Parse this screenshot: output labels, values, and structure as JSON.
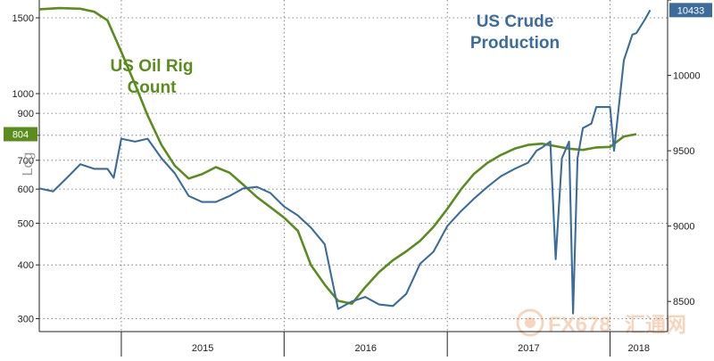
{
  "chart_data": {
    "type": "line",
    "x_categories": [
      "2015",
      "2016",
      "2017",
      "2018"
    ],
    "left_axis": {
      "label": "Log",
      "scale": "log",
      "range": [
        280,
        1650
      ],
      "ticks": [
        300,
        400,
        500,
        600,
        700,
        800,
        900,
        1000,
        1500
      ],
      "tick_labels": [
        "300",
        "400",
        "500",
        "600",
        "700",
        "800",
        "900",
        "1000",
        "1500"
      ]
    },
    "right_axis": {
      "scale": "linear",
      "range": [
        8300,
        10500
      ],
      "ticks": [
        8500,
        9000,
        9500,
        10000,
        10500
      ],
      "tick_labels": [
        "8500",
        "9000",
        "9500",
        "10000",
        "10500"
      ]
    },
    "series": [
      {
        "name": "US Oil Rig Count",
        "axis": "left",
        "color": "#5b8c1e",
        "last_value_label": "804",
        "points": [
          [
            "2014-07-01",
            1570
          ],
          [
            "2014-08-15",
            1580
          ],
          [
            "2014-10-01",
            1575
          ],
          [
            "2014-11-01",
            1550
          ],
          [
            "2014-12-01",
            1480
          ],
          [
            "2015-01-01",
            1250
          ],
          [
            "2015-02-01",
            1050
          ],
          [
            "2015-03-01",
            890
          ],
          [
            "2015-04-01",
            760
          ],
          [
            "2015-05-01",
            680
          ],
          [
            "2015-06-01",
            635
          ],
          [
            "2015-07-01",
            650
          ],
          [
            "2015-08-01",
            675
          ],
          [
            "2015-09-01",
            655
          ],
          [
            "2015-10-01",
            615
          ],
          [
            "2015-11-01",
            575
          ],
          [
            "2015-12-01",
            545
          ],
          [
            "2016-01-01",
            515
          ],
          [
            "2016-02-01",
            480
          ],
          [
            "2016-03-01",
            400
          ],
          [
            "2016-04-01",
            360
          ],
          [
            "2016-05-01",
            330
          ],
          [
            "2016-06-01",
            325
          ],
          [
            "2016-07-01",
            355
          ],
          [
            "2016-08-01",
            385
          ],
          [
            "2016-09-01",
            410
          ],
          [
            "2016-10-01",
            430
          ],
          [
            "2016-11-01",
            455
          ],
          [
            "2016-12-01",
            490
          ],
          [
            "2017-01-01",
            540
          ],
          [
            "2017-02-01",
            600
          ],
          [
            "2017-03-01",
            650
          ],
          [
            "2017-04-01",
            690
          ],
          [
            "2017-05-01",
            720
          ],
          [
            "2017-06-01",
            745
          ],
          [
            "2017-07-01",
            760
          ],
          [
            "2017-08-01",
            765
          ],
          [
            "2017-09-01",
            755
          ],
          [
            "2017-10-01",
            745
          ],
          [
            "2017-11-01",
            740
          ],
          [
            "2017-12-01",
            750
          ],
          [
            "2018-01-01",
            752
          ],
          [
            "2018-02-01",
            795
          ],
          [
            "2018-03-01",
            805
          ]
        ]
      },
      {
        "name": "US Crude Production",
        "axis": "right",
        "color": "#3c6c9c",
        "last_value_label": "10433",
        "points": [
          [
            "2014-07-01",
            9250
          ],
          [
            "2014-08-01",
            9230
          ],
          [
            "2014-09-01",
            9320
          ],
          [
            "2014-10-01",
            9410
          ],
          [
            "2014-11-01",
            9380
          ],
          [
            "2014-12-01",
            9380
          ],
          [
            "2014-12-15",
            9320
          ],
          [
            "2015-01-01",
            9580
          ],
          [
            "2015-02-01",
            9560
          ],
          [
            "2015-03-01",
            9580
          ],
          [
            "2015-04-01",
            9450
          ],
          [
            "2015-05-01",
            9350
          ],
          [
            "2015-06-01",
            9200
          ],
          [
            "2015-07-01",
            9160
          ],
          [
            "2015-08-01",
            9160
          ],
          [
            "2015-09-01",
            9200
          ],
          [
            "2015-10-01",
            9250
          ],
          [
            "2015-11-01",
            9260
          ],
          [
            "2015-12-01",
            9220
          ],
          [
            "2016-01-01",
            9130
          ],
          [
            "2016-02-01",
            9070
          ],
          [
            "2016-03-01",
            8990
          ],
          [
            "2016-04-01",
            8880
          ],
          [
            "2016-05-01",
            8450
          ],
          [
            "2016-06-01",
            8500
          ],
          [
            "2016-07-01",
            8530
          ],
          [
            "2016-08-01",
            8480
          ],
          [
            "2016-09-01",
            8470
          ],
          [
            "2016-10-01",
            8550
          ],
          [
            "2016-11-01",
            8750
          ],
          [
            "2016-12-01",
            8830
          ],
          [
            "2017-01-01",
            9000
          ],
          [
            "2017-02-01",
            9100
          ],
          [
            "2017-03-01",
            9180
          ],
          [
            "2017-04-01",
            9260
          ],
          [
            "2017-05-01",
            9330
          ],
          [
            "2017-06-01",
            9380
          ],
          [
            "2017-07-01",
            9420
          ],
          [
            "2017-07-20",
            9500
          ],
          [
            "2017-08-01",
            9520
          ],
          [
            "2017-08-20",
            9560
          ],
          [
            "2017-09-01",
            8780
          ],
          [
            "2017-09-15",
            9450
          ],
          [
            "2017-10-01",
            9560
          ],
          [
            "2017-10-10",
            8420
          ],
          [
            "2017-10-20",
            9450
          ],
          [
            "2017-11-01",
            9650
          ],
          [
            "2017-11-20",
            9680
          ],
          [
            "2017-12-01",
            9790
          ],
          [
            "2018-01-01",
            9790
          ],
          [
            "2018-01-10",
            9500
          ],
          [
            "2018-02-01",
            10100
          ],
          [
            "2018-02-20",
            10270
          ],
          [
            "2018-03-01",
            10280
          ],
          [
            "2018-03-20",
            10370
          ],
          [
            "2018-04-01",
            10433
          ]
        ]
      }
    ],
    "annotations": [
      "US Oil Rig Count",
      "US Crude Production"
    ],
    "grid": true
  },
  "watermark": {
    "latin": "FX678",
    "chinese": "汇通网"
  }
}
